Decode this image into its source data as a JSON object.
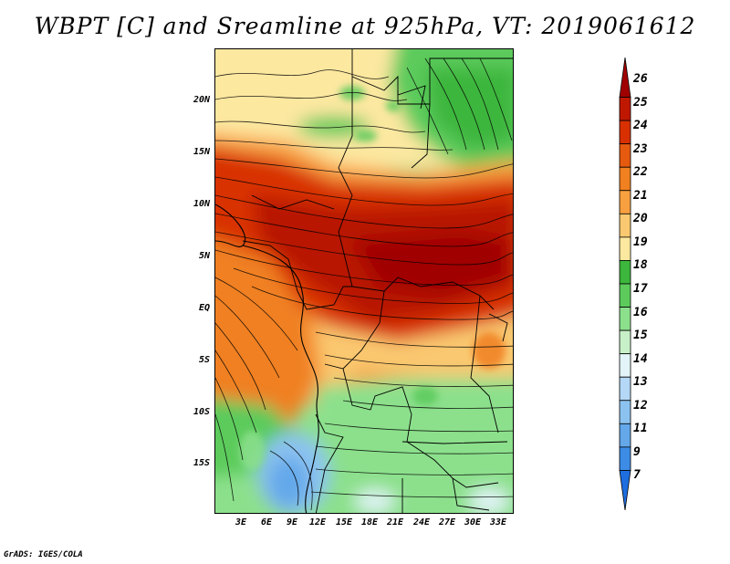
{
  "title": "WBPT [C] and Sreamline at 925hPa, VT: 2019061612",
  "credit": "GrADS: IGES/COLA",
  "axes": {
    "lat_labels": [
      "20N",
      "15N",
      "10N",
      "5N",
      "EQ",
      "5S",
      "10S",
      "15S"
    ],
    "lon_labels": [
      "3E",
      "6E",
      "9E",
      "12E",
      "15E",
      "18E",
      "21E",
      "24E",
      "27E",
      "30E",
      "33E"
    ]
  },
  "colorbar": {
    "labels": [
      "26",
      "25",
      "24",
      "23",
      "22",
      "21",
      "20",
      "19",
      "18",
      "17",
      "16",
      "15",
      "14",
      "13",
      "12",
      "11",
      "9",
      "7"
    ],
    "colors": [
      "#a00000",
      "#c01800",
      "#d83000",
      "#e65a10",
      "#f08020",
      "#f8a040",
      "#fac870",
      "#fde8a0",
      "#3cb63c",
      "#5ccb5c",
      "#8ce08c",
      "#c8f0c8",
      "#e2f4f8",
      "#b4d8f6",
      "#8cc2f0",
      "#64a8ea",
      "#3c8ce6",
      "#1e6ee0"
    ]
  },
  "legend_colors": {
    "red": "#b81800",
    "orange": "#f08020",
    "green": "#5ccb5c",
    "blue": "#64a8ea",
    "line": "#000000"
  }
}
